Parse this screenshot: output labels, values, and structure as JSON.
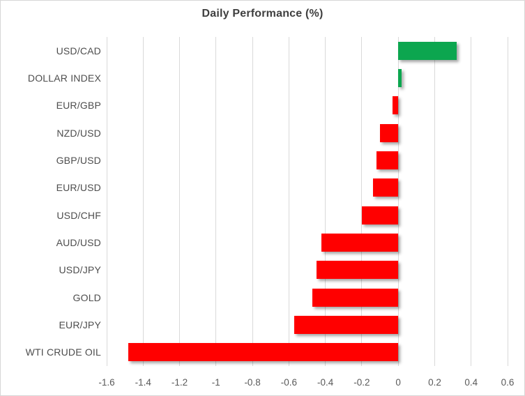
{
  "chart_data": {
    "type": "bar",
    "orientation": "horizontal",
    "title": "Daily Performance (%)",
    "categories": [
      "USD/CAD",
      "DOLLAR INDEX",
      "EUR/GBP",
      "NZD/USD",
      "GBP/USD",
      "EUR/USD",
      "USD/CHF",
      "AUD/USD",
      "USD/JPY",
      "GOLD",
      "EUR/JPY",
      "WTI CRUDE OIL"
    ],
    "values": [
      0.32,
      0.02,
      -0.03,
      -0.1,
      -0.12,
      -0.14,
      -0.2,
      -0.42,
      -0.45,
      -0.47,
      -0.57,
      -1.48
    ],
    "xlabel": "",
    "ylabel": "",
    "xlim": [
      -1.6,
      0.6
    ],
    "xticks": [
      -1.6,
      -1.4,
      -1.2,
      -1,
      -0.8,
      -0.6,
      -0.4,
      -0.2,
      0,
      0.2,
      0.4,
      0.6
    ],
    "xtick_labels": [
      "-1.6",
      "-1.4",
      "-1.2",
      "-1",
      "-0.8",
      "-0.6",
      "-0.4",
      "-0.2",
      "0",
      "0.2",
      "0.4",
      "0.6"
    ],
    "grid": true,
    "legend": false
  },
  "colors": {
    "positive_bar": "#0CA64F",
    "negative_bar": "#FF0000",
    "gridline": "#D9D9D9",
    "title_text": "#3F3F3F",
    "category_text": "#4D4D4D",
    "tick_text": "#595959",
    "frame_border": "#D7D7D7",
    "background": "#FFFFFF"
  }
}
